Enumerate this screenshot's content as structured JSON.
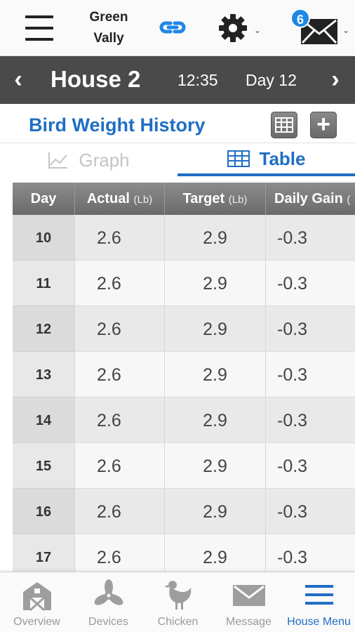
{
  "header": {
    "farm_name_line1": "Green",
    "farm_name_line2": "Vally",
    "mail_badge_count": "6",
    "accent_color": "#1f6fc4"
  },
  "house_bar": {
    "prev_arrow": "‹",
    "next_arrow": "›",
    "title": "House 2",
    "time": "12:35",
    "day": "Day 12"
  },
  "page": {
    "title": "Bird Weight History",
    "add_label": "+"
  },
  "tabs": {
    "graph_label": "Graph",
    "table_label": "Table"
  },
  "table": {
    "columns": [
      {
        "name": "Day",
        "unit": ""
      },
      {
        "name": "Actual",
        "unit": "(Lb)"
      },
      {
        "name": "Target",
        "unit": "(Lb)"
      },
      {
        "name": "Daily Gain",
        "unit": "("
      }
    ],
    "rows": [
      {
        "day": "10",
        "actual": "2.6",
        "target": "2.9",
        "gain": "-0.3"
      },
      {
        "day": "11",
        "actual": "2.6",
        "target": "2.9",
        "gain": "-0.3"
      },
      {
        "day": "12",
        "actual": "2.6",
        "target": "2.9",
        "gain": "-0.3"
      },
      {
        "day": "13",
        "actual": "2.6",
        "target": "2.9",
        "gain": "-0.3"
      },
      {
        "day": "14",
        "actual": "2.6",
        "target": "2.9",
        "gain": "-0.3"
      },
      {
        "day": "15",
        "actual": "2.6",
        "target": "2.9",
        "gain": "-0.3"
      },
      {
        "day": "16",
        "actual": "2.6",
        "target": "2.9",
        "gain": "-0.3"
      },
      {
        "day": "17",
        "actual": "2.6",
        "target": "2.9",
        "gain": "-0.3"
      }
    ]
  },
  "bottom_nav": {
    "items": [
      {
        "label": "Overview",
        "icon": "barn-icon"
      },
      {
        "label": "Devices",
        "icon": "fan-icon"
      },
      {
        "label": "Chicken",
        "icon": "chicken-icon"
      },
      {
        "label": "Message",
        "icon": "envelope-icon"
      },
      {
        "label": "House Menu",
        "icon": "menu-icon"
      }
    ],
    "active_index": 4
  }
}
